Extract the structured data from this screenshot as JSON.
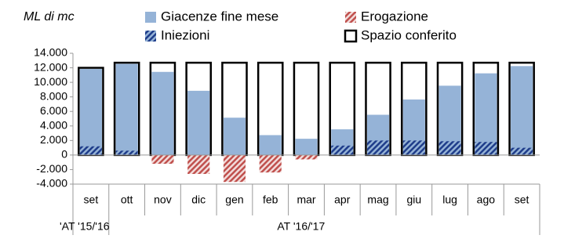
{
  "chart_data": {
    "type": "bar",
    "y_title": "ML di mc",
    "categories": [
      "set",
      "ott",
      "nov",
      "dic",
      "gen",
      "feb",
      "mar",
      "apr",
      "mag",
      "giu",
      "lug",
      "ago",
      "set"
    ],
    "groups": [
      {
        "label": "'AT '15/'16",
        "span": [
          0,
          0
        ]
      },
      {
        "label": "AT '16/'17",
        "span": [
          1,
          12
        ]
      }
    ],
    "series": [
      {
        "name": "Spazio conferito",
        "color": "#000000",
        "values": [
          12000,
          12700,
          12700,
          12700,
          12700,
          12700,
          12700,
          12700,
          12700,
          12700,
          12700,
          12700,
          12700
        ]
      },
      {
        "name": "Giacenze fine mese",
        "color": "#95b3d7",
        "values": [
          12000,
          12700,
          11600,
          9000,
          5300,
          2900,
          2400,
          3700,
          5700,
          7800,
          9700,
          11400,
          12400
        ]
      },
      {
        "name": "Iniezioni",
        "color": "#1f3d8a",
        "values": [
          1200,
          600,
          0,
          0,
          0,
          0,
          0,
          1300,
          2000,
          2000,
          1900,
          1800,
          1000
        ]
      },
      {
        "name": "Erogazione",
        "color": "#c0504d",
        "values": [
          0,
          0,
          -1200,
          -2600,
          -3700,
          -2400,
          -600,
          0,
          0,
          0,
          0,
          0,
          0
        ]
      }
    ],
    "ylim": [
      -4000,
      14000
    ],
    "yticks": [
      {
        "value": -4000,
        "label": "-4.000"
      },
      {
        "value": -2000,
        "label": "-2.000"
      },
      0,
      {
        "value": 2000,
        "label": "2.000"
      },
      {
        "value": 4000,
        "label": "4.000"
      },
      {
        "value": 6000,
        "label": "6.000"
      },
      {
        "value": 8000,
        "label": "8.000"
      },
      {
        "value": 10000,
        "label": "10.000"
      },
      {
        "value": 12000,
        "label": "12.000"
      },
      {
        "value": 14000,
        "label": "14.000"
      }
    ]
  }
}
